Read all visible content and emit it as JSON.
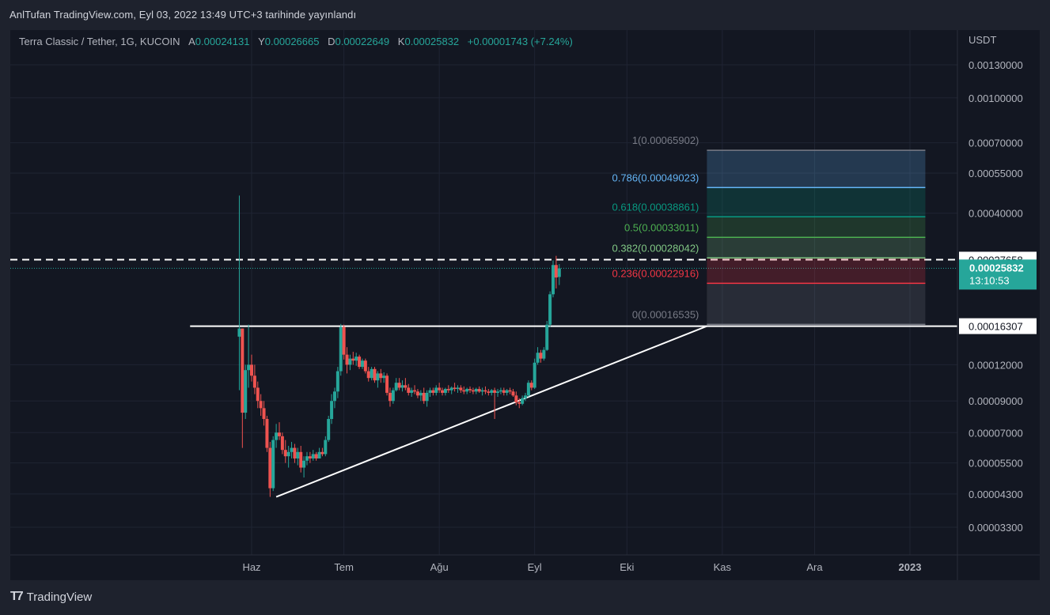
{
  "publish_line": "AnlTufan TradingView.com, Eyl 03, 2022 13:49 UTC+3 tarihinde yayınlandı",
  "legend": {
    "symbol": "Terra Classic / Tether, 1G, KUCOIN",
    "open_label": "A",
    "open": "0.00024131",
    "high_label": "Y",
    "high": "0.00026665",
    "low_label": "D",
    "low": "0.00022649",
    "close_label": "K",
    "close": "0.00025832",
    "change": "+0.00001743 (+7.24%)"
  },
  "footer": {
    "brand": "TradingView",
    "logo_icon": "tradingview-logo-icon"
  },
  "colors": {
    "background": "#131722",
    "frame": "#1e222d",
    "up": "#26a69a",
    "down": "#ef5350",
    "text": "#b2b5be",
    "grid": "#1f2433",
    "current_price": "#26a69a"
  },
  "chart_data": {
    "type": "candlestick",
    "title": "Terra Classic / Tether, 1G, KUCOIN",
    "currency": "USDT",
    "scale": "log",
    "grid": true,
    "y_ticks": [
      "0.00130000",
      "0.00100000",
      "0.00070000",
      "0.00055000",
      "0.00040000",
      "0.00012000",
      "0.00009000",
      "0.00007000",
      "0.00005500",
      "0.00004300",
      "0.00003300"
    ],
    "x_ticks": [
      "Haz",
      "Tem",
      "Ağu",
      "Eyl",
      "Eki",
      "Kas",
      "Ara",
      "2023"
    ],
    "price_labels": [
      {
        "text": "0.00027658",
        "value": 0.00027658,
        "style": "white"
      },
      {
        "text": "0.00025832",
        "value": 0.00025832,
        "style": "current",
        "countdown": "13:10:53"
      },
      {
        "text": "0.00016307",
        "value": 0.00016307,
        "style": "white"
      }
    ],
    "dashed_line": 0.00027658,
    "current_price": 0.00025832,
    "horizontal_line": {
      "value": 0.00016307,
      "from": "2022-05-12",
      "to": "2022-11-30"
    },
    "trendline": {
      "start": [
        "2022-06-09",
        4.2e-05
      ],
      "end": [
        "2022-10-27",
        0.00016307
      ]
    },
    "fibonacci": {
      "from": "2022-10-27",
      "to": "2023-01-06",
      "levels": [
        {
          "ratio": "1",
          "price": 0.00065902,
          "label": "1(0.00065902)",
          "color": "#787b86"
        },
        {
          "ratio": "0.786",
          "price": 0.00049023,
          "label": "0.786(0.00049023)",
          "color": "#64b5f6"
        },
        {
          "ratio": "0.618",
          "price": 0.00038861,
          "label": "0.618(0.00038861)",
          "color": "#089981"
        },
        {
          "ratio": "0.5",
          "price": 0.00033011,
          "label": "0.5(0.00033011)",
          "color": "#4caf50"
        },
        {
          "ratio": "0.382",
          "price": 0.00028042,
          "label": "0.382(0.00028042)",
          "color": "#81c784"
        },
        {
          "ratio": "0.236",
          "price": 0.00022916,
          "label": "0.236(0.00022916)",
          "color": "#f23645"
        },
        {
          "ratio": "0",
          "price": 0.00016535,
          "label": "0(0.00016535)",
          "color": "#787b86"
        }
      ]
    },
    "candles": [
      [
        "2022-05-28",
        0.00015,
        0.00046,
        9.8e-05,
        0.00016
      ],
      [
        "2022-05-29",
        0.00016,
        0.00016,
        6.2e-05,
        8.2e-05
      ],
      [
        "2022-05-30",
        8.2e-05,
        0.00012,
        7.8e-05,
        0.000115
      ],
      [
        "2022-05-31",
        0.000115,
        0.000165,
        0.0001,
        0.00012
      ],
      [
        "2022-06-01",
        0.00012,
        0.00013,
        0.000105,
        0.00011
      ],
      [
        "2022-06-02",
        0.00011,
        0.00012,
        9.5e-05,
        0.0001
      ],
      [
        "2022-06-03",
        0.0001,
        0.000105,
        8.5e-05,
        9e-05
      ],
      [
        "2022-06-04",
        9e-05,
        9.5e-05,
        8e-05,
        8.5e-05
      ],
      [
        "2022-06-05",
        8.5e-05,
        9e-05,
        7.4e-05,
        7.8e-05
      ],
      [
        "2022-06-06",
        7.8e-05,
        8e-05,
        6e-05,
        6.2e-05
      ],
      [
        "2022-06-07",
        6.2e-05,
        6.5e-05,
        4.2e-05,
        4.5e-05
      ],
      [
        "2022-06-08",
        4.5e-05,
        6.8e-05,
        4.4e-05,
        6.6e-05
      ],
      [
        "2022-06-09",
        6.6e-05,
        7.5e-05,
        6.2e-05,
        7e-05
      ],
      [
        "2022-06-10",
        7e-05,
        7.6e-05,
        6.6e-05,
        6.8e-05
      ],
      [
        "2022-06-11",
        6.8e-05,
        7e-05,
        5.9e-05,
        6.1e-05
      ],
      [
        "2022-06-12",
        6.1e-05,
        6.6e-05,
        5.5e-05,
        5.8e-05
      ],
      [
        "2022-06-13",
        5.8e-05,
        6.3e-05,
        5.3e-05,
        6e-05
      ],
      [
        "2022-06-14",
        6e-05,
        6.5e-05,
        5.7e-05,
        6.2e-05
      ],
      [
        "2022-06-15",
        6.2e-05,
        6.4e-05,
        5.5e-05,
        5.7e-05
      ],
      [
        "2022-06-16",
        5.7e-05,
        6.2e-05,
        5.4e-05,
        6e-05
      ],
      [
        "2022-06-17",
        6e-05,
        6.3e-05,
        5.1e-05,
        5.3e-05
      ],
      [
        "2022-06-18",
        5.3e-05,
        5.8e-05,
        4.9e-05,
        5.6e-05
      ],
      [
        "2022-06-19",
        5.6e-05,
        6e-05,
        5.4e-05,
        5.8e-05
      ],
      [
        "2022-06-20",
        5.8e-05,
        6e-05,
        5.5e-05,
        5.7e-05
      ],
      [
        "2022-06-21",
        5.7e-05,
        6.1e-05,
        5.6e-05,
        5.9e-05
      ],
      [
        "2022-06-22",
        5.9e-05,
        6e-05,
        5.6e-05,
        5.7e-05
      ],
      [
        "2022-06-23",
        5.7e-05,
        6.2e-05,
        5.7e-05,
        6e-05
      ],
      [
        "2022-06-24",
        6e-05,
        6.2e-05,
        5.8e-05,
        5.9e-05
      ],
      [
        "2022-06-25",
        5.9e-05,
        6.8e-05,
        5.8e-05,
        6.6e-05
      ],
      [
        "2022-06-26",
        6.6e-05,
        8e-05,
        6.5e-05,
        7.8e-05
      ],
      [
        "2022-06-27",
        7.8e-05,
        9.5e-05,
        7.5e-05,
        9e-05
      ],
      [
        "2022-06-28",
        9e-05,
        0.0001,
        8.5e-05,
        9.7e-05
      ],
      [
        "2022-06-29",
        9.7e-05,
        0.000118,
        9.2e-05,
        0.000114
      ],
      [
        "2022-06-30",
        0.000114,
        0.000166,
        0.00011,
        0.000162
      ],
      [
        "2022-07-01",
        0.000162,
        0.000165,
        0.000125,
        0.00013
      ],
      [
        "2022-07-02",
        0.00013,
        0.000138,
        0.000112,
        0.00012
      ],
      [
        "2022-07-03",
        0.00012,
        0.00013,
        0.000115,
        0.000126
      ],
      [
        "2022-07-04",
        0.000126,
        0.000133,
        0.00012,
        0.000124
      ],
      [
        "2022-07-05",
        0.000124,
        0.000132,
        0.000119,
        0.000128
      ],
      [
        "2022-07-06",
        0.000128,
        0.00013,
        0.000116,
        0.000118
      ],
      [
        "2022-07-07",
        0.000118,
        0.000126,
        0.000116,
        0.000124
      ],
      [
        "2022-07-08",
        0.000124,
        0.000126,
        0.000112,
        0.000114
      ],
      [
        "2022-07-09",
        0.000114,
        0.000118,
        0.000105,
        0.000108
      ],
      [
        "2022-07-10",
        0.000108,
        0.000118,
        0.000106,
        0.000116
      ],
      [
        "2022-07-11",
        0.000116,
        0.000118,
        0.000104,
        0.000106
      ],
      [
        "2022-07-12",
        0.000106,
        0.000114,
        0.0001,
        0.000112
      ],
      [
        "2022-07-13",
        0.000112,
        0.000116,
        0.000104,
        0.000108
      ],
      [
        "2022-07-14",
        0.000108,
        0.000113,
        0.000104,
        0.00011
      ],
      [
        "2022-07-15",
        0.00011,
        0.000112,
        9.4e-05,
        9.6e-05
      ],
      [
        "2022-07-16",
        9.6e-05,
        0.0001,
        8.6e-05,
        9e-05
      ],
      [
        "2022-07-17",
        9e-05,
        0.0001,
        8.8e-05,
        9.8e-05
      ],
      [
        "2022-07-18",
        9.8e-05,
        0.000108,
        9.7e-05,
        0.000104
      ],
      [
        "2022-07-19",
        0.000104,
        0.000108,
        9.8e-05,
        0.0001
      ],
      [
        "2022-07-20",
        0.0001,
        0.000106,
        9.7e-05,
        0.000102
      ],
      [
        "2022-07-21",
        0.000102,
        0.000108,
        9.8e-05,
        0.0001
      ],
      [
        "2022-07-22",
        0.0001,
        0.000103,
        9.4e-05,
        9.6e-05
      ],
      [
        "2022-07-23",
        9.6e-05,
        0.0001,
        9.3e-05,
        9.8e-05
      ],
      [
        "2022-07-24",
        9.8e-05,
        0.000102,
        9.5e-05,
        9.7e-05
      ],
      [
        "2022-07-25",
        9.7e-05,
        9.9e-05,
        9.2e-05,
        9.4e-05
      ],
      [
        "2022-07-26",
        9.4e-05,
        9.8e-05,
        9e-05,
        9.6e-05
      ],
      [
        "2022-07-27",
        9.6e-05,
        0.0001,
        8.8e-05,
        9e-05
      ],
      [
        "2022-07-28",
        9e-05,
        9.8e-05,
        8.6e-05,
        9.6e-05
      ],
      [
        "2022-07-29",
        9.6e-05,
        0.0001,
        9.3e-05,
        9.8e-05
      ],
      [
        "2022-07-30",
        9.8e-05,
        0.0001,
        9.4e-05,
        9.6e-05
      ],
      [
        "2022-07-31",
        9.6e-05,
        0.000102,
        9.4e-05,
        0.0001
      ],
      [
        "2022-08-01",
        0.0001,
        0.000104,
        9.6e-05,
        9.8e-05
      ],
      [
        "2022-08-02",
        9.8e-05,
        0.0001,
        9.4e-05,
        9.6e-05
      ],
      [
        "2022-08-03",
        9.6e-05,
        0.0001,
        9.4e-05,
        9.9e-05
      ],
      [
        "2022-08-04",
        9.9e-05,
        0.000102,
        9.6e-05,
        9.8e-05
      ],
      [
        "2022-08-05",
        9.8e-05,
        0.000101,
        9.5e-05,
        0.0001
      ],
      [
        "2022-08-06",
        0.0001,
        0.000104,
        9.7e-05,
        9.9e-05
      ],
      [
        "2022-08-07",
        9.9e-05,
        0.000102,
        9.6e-05,
        0.0001
      ],
      [
        "2022-08-08",
        0.0001,
        0.000102,
        9.6e-05,
        9.8e-05
      ],
      [
        "2022-08-09",
        9.8e-05,
        0.000101,
        9.5e-05,
        9.7e-05
      ],
      [
        "2022-08-10",
        9.7e-05,
        0.0001,
        9.5e-05,
        9.9e-05
      ],
      [
        "2022-08-11",
        9.9e-05,
        0.000101,
        9.6e-05,
        9.8e-05
      ],
      [
        "2022-08-12",
        9.8e-05,
        0.0001,
        9.5e-05,
        9.7e-05
      ],
      [
        "2022-08-13",
        9.7e-05,
        0.0001,
        9.5e-05,
        9.9e-05
      ],
      [
        "2022-08-14",
        9.9e-05,
        0.000101,
        9.6e-05,
        9.7e-05
      ],
      [
        "2022-08-15",
        9.7e-05,
        0.0001,
        9.4e-05,
        9.8e-05
      ],
      [
        "2022-08-16",
        9.8e-05,
        0.000101,
        9.5e-05,
        9.7e-05
      ],
      [
        "2022-08-17",
        9.7e-05,
        9.9e-05,
        9.4e-05,
        9.6e-05
      ],
      [
        "2022-08-18",
        9.6e-05,
        9.9e-05,
        9.4e-05,
        9.8e-05
      ],
      [
        "2022-08-19",
        9.8e-05,
        0.0001,
        7.8e-05,
        9.6e-05
      ],
      [
        "2022-08-20",
        9.6e-05,
        9.9e-05,
        9.3e-05,
        9.7e-05
      ],
      [
        "2022-08-21",
        9.7e-05,
        0.0001,
        9.5e-05,
        9.8e-05
      ],
      [
        "2022-08-22",
        9.8e-05,
        0.0001,
        9.4e-05,
        9.6e-05
      ],
      [
        "2022-08-23",
        9.6e-05,
        9.9e-05,
        9.4e-05,
        9.8e-05
      ],
      [
        "2022-08-24",
        9.8e-05,
        0.0001,
        9.5e-05,
        9.7e-05
      ],
      [
        "2022-08-25",
        9.7e-05,
        9.9e-05,
        9.3e-05,
        9.4e-05
      ],
      [
        "2022-08-26",
        9.4e-05,
        9.7e-05,
        8.7e-05,
        8.9e-05
      ],
      [
        "2022-08-27",
        8.9e-05,
        9.2e-05,
        8.5e-05,
        8.8e-05
      ],
      [
        "2022-08-28",
        8.8e-05,
        9.4e-05,
        8.7e-05,
        9.2e-05
      ],
      [
        "2022-08-29",
        9.2e-05,
        9.6e-05,
        9e-05,
        9.4e-05
      ],
      [
        "2022-08-30",
        9.4e-05,
        0.000106,
        9.3e-05,
        0.000104
      ],
      [
        "2022-08-31",
        0.000104,
        0.000106,
        9.8e-05,
        0.0001
      ],
      [
        "2022-09-01",
        0.0001,
        0.000126,
        9.9e-05,
        0.000122
      ],
      [
        "2022-09-02",
        0.000122,
        0.000138,
        0.00012,
        0.000132
      ],
      [
        "2022-09-03",
        0.000132,
        0.000135,
        0.000122,
        0.000126
      ],
      [
        "2022-09-04",
        0.000126,
        0.000138,
        0.000124,
        0.000135
      ],
      [
        "2022-09-05",
        0.000135,
        0.00017,
        0.000134,
        0.000165
      ],
      [
        "2022-09-06",
        0.000165,
        0.000215,
        0.000162,
        0.00021
      ],
      [
        "2022-09-07",
        0.00021,
        0.000275,
        0.000205,
        0.000265
      ],
      [
        "2022-09-08",
        0.000265,
        0.000285,
        0.00022,
        0.00024
      ],
      [
        "2022-09-09",
        0.000241,
        0.000267,
        0.000226,
        0.000258
      ]
    ]
  }
}
